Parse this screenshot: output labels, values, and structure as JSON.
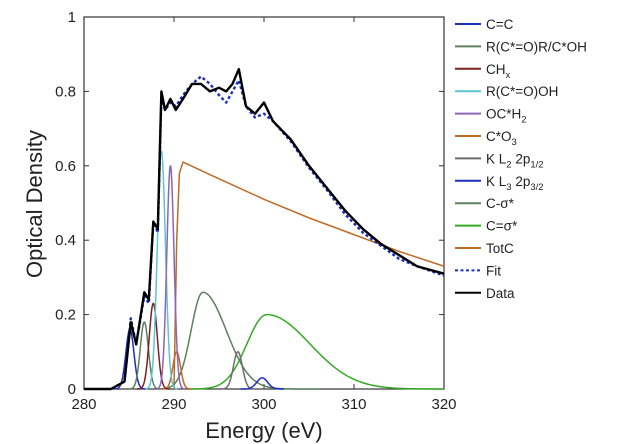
{
  "chart_data": {
    "type": "line",
    "title": "",
    "xlabel": "Energy (eV)",
    "ylabel": "Optical Density",
    "xlim": [
      280,
      320
    ],
    "ylim": [
      0,
      1
    ],
    "x_ticks": [
      280,
      290,
      300,
      310,
      320
    ],
    "y_ticks": [
      0,
      0.2,
      0.4,
      0.6,
      0.8,
      1
    ],
    "x_tick_labels": [
      "280",
      "290",
      "300",
      "310",
      "320"
    ],
    "y_tick_labels": [
      "0",
      "0.2",
      "0.4",
      "0.6",
      "0.8",
      "1"
    ],
    "grid": false,
    "legend_position": "right",
    "series": [
      {
        "key": "cc",
        "name": "C=C",
        "color": "#1a2fbf",
        "kind": "gauss",
        "center": 285.1,
        "width": 0.45,
        "height": 0.16
      },
      {
        "key": "rcor",
        "name": "R(C*=O)R/C*OH",
        "color": "#5d8060",
        "kind": "gauss",
        "center": 286.7,
        "width": 0.45,
        "height": 0.18
      },
      {
        "key": "chx",
        "name": "CH",
        "sub": "x",
        "color": "#7a2020",
        "kind": "gauss",
        "center": 287.7,
        "width": 0.45,
        "height": 0.23
      },
      {
        "key": "rcooh",
        "name": "R(C*=O)OH",
        "color": "#5cc6d6",
        "kind": "gauss",
        "center": 288.6,
        "width": 0.45,
        "height": 0.64
      },
      {
        "key": "och2",
        "name": "OC*H",
        "sub": "2",
        "color": "#8a66b8",
        "kind": "gauss",
        "center": 289.6,
        "width": 0.4,
        "height": 0.6
      },
      {
        "key": "co3",
        "name": "C*O",
        "sub": "3",
        "color": "#c06a28",
        "kind": "gauss",
        "center": 290.3,
        "width": 0.42,
        "height": 0.1
      },
      {
        "key": "kl2",
        "name": "K L",
        "sub": "2",
        "name2": " 2p",
        "sub2": "1/2",
        "color": "#6e6e6e",
        "kind": "gauss",
        "center": 297.1,
        "width": 0.5,
        "height": 0.1
      },
      {
        "key": "kl3",
        "name": "K L",
        "sub": "3",
        "name2": " 2p",
        "sub2": "3/2",
        "color": "#1a2fbf",
        "kind": "gauss",
        "center": 299.8,
        "width": 0.6,
        "height": 0.03
      },
      {
        "key": "csig",
        "name": "C-σ*",
        "color": "#5d8060",
        "kind": "asym",
        "center": 293.2,
        "w_left": 1.3,
        "w_right": 2.6,
        "height": 0.26
      },
      {
        "key": "cdsig",
        "name": "C=σ*",
        "color": "#33aa22",
        "kind": "asym",
        "center": 300.3,
        "w_left": 2.2,
        "w_right": 4.8,
        "height": 0.2
      },
      {
        "key": "totc",
        "name": "TotC",
        "color": "#c06a28",
        "kind": "points",
        "points": [
          [
            290.0,
            0.0
          ],
          [
            290.3,
            0.4
          ],
          [
            290.6,
            0.58
          ],
          [
            291.0,
            0.61
          ],
          [
            295,
            0.565
          ],
          [
            300,
            0.51
          ],
          [
            305,
            0.46
          ],
          [
            310,
            0.415
          ],
          [
            315,
            0.37
          ],
          [
            320,
            0.33
          ]
        ]
      },
      {
        "key": "fit",
        "name": "Fit",
        "color": "#1a2fbf",
        "dashed": true,
        "kind": "points",
        "points": [
          [
            283.0,
            0.0
          ],
          [
            284.5,
            0.02
          ],
          [
            285.2,
            0.19
          ],
          [
            285.8,
            0.12
          ],
          [
            286.7,
            0.25
          ],
          [
            287.2,
            0.23
          ],
          [
            287.7,
            0.45
          ],
          [
            288.2,
            0.42
          ],
          [
            288.6,
            0.79
          ],
          [
            289.0,
            0.75
          ],
          [
            289.6,
            0.77
          ],
          [
            290.2,
            0.76
          ],
          [
            291.0,
            0.79
          ],
          [
            292.0,
            0.82
          ],
          [
            293.0,
            0.84
          ],
          [
            294.0,
            0.82
          ],
          [
            295.0,
            0.79
          ],
          [
            295.8,
            0.77
          ],
          [
            296.5,
            0.8
          ],
          [
            297.2,
            0.83
          ],
          [
            298.0,
            0.76
          ],
          [
            299.0,
            0.73
          ],
          [
            300.0,
            0.74
          ],
          [
            301.0,
            0.72
          ],
          [
            303.0,
            0.665
          ],
          [
            305.0,
            0.595
          ],
          [
            307.0,
            0.535
          ],
          [
            309.0,
            0.47
          ],
          [
            311.0,
            0.42
          ],
          [
            313.0,
            0.385
          ],
          [
            315.0,
            0.35
          ],
          [
            317.0,
            0.33
          ],
          [
            320.0,
            0.305
          ]
        ]
      },
      {
        "key": "data",
        "name": "Data",
        "color": "#000000",
        "kind": "points",
        "points": [
          [
            280.0,
            0.0
          ],
          [
            283.0,
            0.0
          ],
          [
            284.5,
            0.02
          ],
          [
            285.2,
            0.18
          ],
          [
            285.8,
            0.12
          ],
          [
            286.7,
            0.26
          ],
          [
            287.2,
            0.24
          ],
          [
            287.7,
            0.45
          ],
          [
            288.2,
            0.43
          ],
          [
            288.6,
            0.8
          ],
          [
            289.0,
            0.75
          ],
          [
            289.6,
            0.78
          ],
          [
            290.2,
            0.75
          ],
          [
            291.0,
            0.78
          ],
          [
            292.0,
            0.82
          ],
          [
            293.0,
            0.82
          ],
          [
            294.0,
            0.8
          ],
          [
            295.0,
            0.81
          ],
          [
            295.8,
            0.8
          ],
          [
            296.5,
            0.82
          ],
          [
            297.2,
            0.86
          ],
          [
            298.0,
            0.76
          ],
          [
            299.0,
            0.74
          ],
          [
            300.0,
            0.77
          ],
          [
            301.0,
            0.72
          ],
          [
            303.0,
            0.67
          ],
          [
            305.0,
            0.6
          ],
          [
            307.0,
            0.54
          ],
          [
            309.0,
            0.48
          ],
          [
            311.0,
            0.43
          ],
          [
            313.0,
            0.39
          ],
          [
            315.0,
            0.36
          ],
          [
            317.0,
            0.33
          ],
          [
            320.0,
            0.31
          ]
        ]
      }
    ]
  }
}
